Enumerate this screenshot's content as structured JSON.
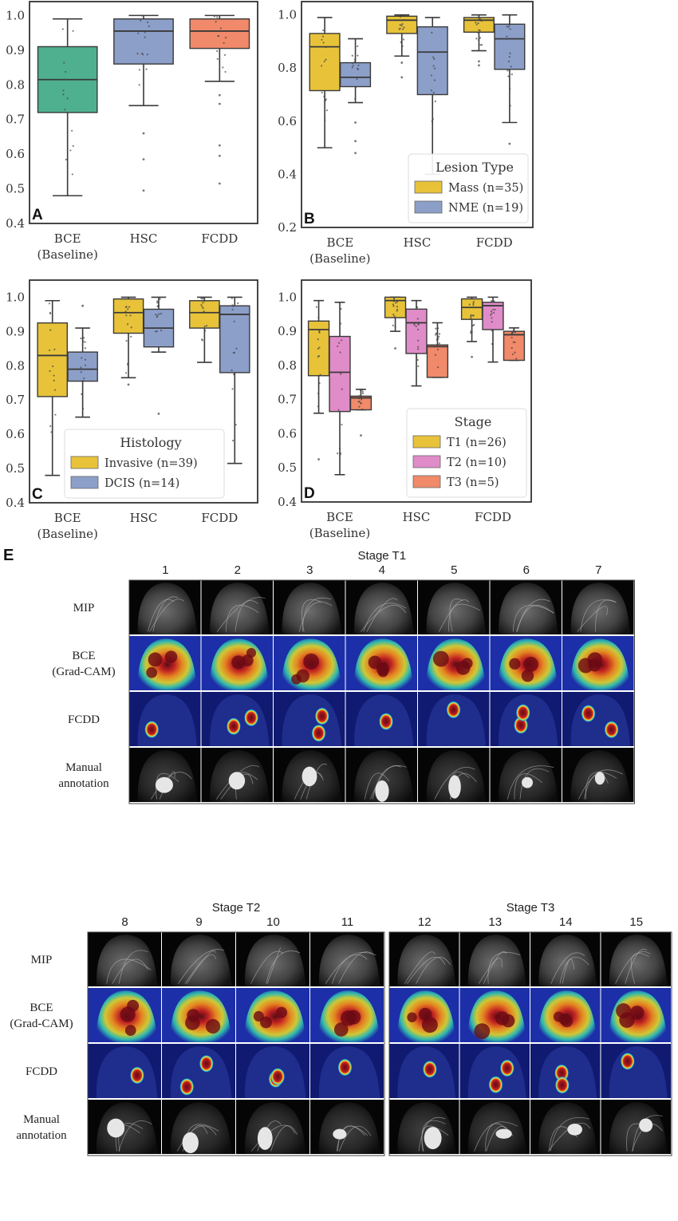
{
  "figure": {
    "panel_E_label": "E",
    "colors": {
      "overall_bce": "#4fb08f",
      "overall_hsc": "#8c9fc9",
      "overall_fcdd": "#f08a6a",
      "yellow": "#e8c33a",
      "blue": "#8c9fc9",
      "pink": "#e08cc8",
      "orange": "#f08a6a"
    }
  },
  "chart_data": [
    {
      "panel": "A",
      "type": "boxplot",
      "title": "",
      "xlabel": "",
      "ylabel": "",
      "categories": [
        "BCE\n(Baseline)",
        "HSC",
        "FCDD"
      ],
      "category_lines": [
        [
          "BCE",
          "(Baseline)"
        ],
        [
          "HSC"
        ],
        [
          "FCDD"
        ]
      ],
      "ylim": [
        0.4,
        1.04
      ],
      "yticks": [
        "0.4",
        "0.5",
        "0.6",
        "0.7",
        "0.8",
        "0.9",
        "1.0"
      ],
      "legend": null,
      "groups": [
        {
          "category": "BCE (Baseline)",
          "series": "All",
          "color": "#4fb08f",
          "whisker_low": 0.48,
          "q1": 0.72,
          "median": 0.815,
          "q3": 0.91,
          "whisker_high": 0.99,
          "outliers": []
        },
        {
          "category": "HSC",
          "series": "All",
          "color": "#8c9fc9",
          "whisker_low": 0.74,
          "q1": 0.86,
          "median": 0.955,
          "q3": 0.99,
          "whisker_high": 1.0,
          "outliers": [
            0.66,
            0.585,
            0.495
          ]
        },
        {
          "category": "FCDD",
          "series": "All",
          "color": "#f08a6a",
          "whisker_low": 0.81,
          "q1": 0.905,
          "median": 0.955,
          "q3": 0.99,
          "whisker_high": 1.0,
          "outliers": [
            0.77,
            0.745,
            0.625,
            0.595,
            0.515
          ]
        }
      ]
    },
    {
      "panel": "B",
      "type": "boxplot",
      "title": "",
      "xlabel": "",
      "ylabel": "",
      "categories": [
        "BCE\n(Baseline)",
        "HSC",
        "FCDD"
      ],
      "category_lines": [
        [
          "BCE",
          "(Baseline)"
        ],
        [
          "HSC"
        ],
        [
          "FCDD"
        ]
      ],
      "ylim": [
        0.2,
        1.05
      ],
      "yticks": [
        "0.2",
        "0.4",
        "0.6",
        "0.8",
        "1.0"
      ],
      "legend": {
        "title": "Lesion Type",
        "position": "lower-right",
        "entries": [
          {
            "label": "Mass (n=35)",
            "color": "#e8c33a"
          },
          {
            "label": "NME (n=19)",
            "color": "#8c9fc9"
          }
        ]
      },
      "groups": [
        {
          "category": "BCE (Baseline)",
          "series": "Mass (n=35)",
          "color": "#e8c33a",
          "whisker_low": 0.5,
          "q1": 0.715,
          "median": 0.88,
          "q3": 0.93,
          "whisker_high": 0.99,
          "outliers": []
        },
        {
          "category": "BCE (Baseline)",
          "series": "NME (n=19)",
          "color": "#8c9fc9",
          "whisker_low": 0.67,
          "q1": 0.73,
          "median": 0.765,
          "q3": 0.82,
          "whisker_high": 0.91,
          "outliers": [
            0.595,
            0.525,
            0.48
          ]
        },
        {
          "category": "HSC",
          "series": "Mass (n=35)",
          "color": "#e8c33a",
          "whisker_low": 0.845,
          "q1": 0.93,
          "median": 0.98,
          "q3": 0.995,
          "whisker_high": 1.0,
          "outliers": [
            0.82,
            0.765
          ]
        },
        {
          "category": "HSC",
          "series": "NME (n=19)",
          "color": "#8c9fc9",
          "whisker_low": 0.4,
          "q1": 0.7,
          "median": 0.86,
          "q3": 0.955,
          "whisker_high": 0.99,
          "outliers": []
        },
        {
          "category": "FCDD",
          "series": "Mass (n=35)",
          "color": "#e8c33a",
          "whisker_low": 0.865,
          "q1": 0.935,
          "median": 0.98,
          "q3": 0.99,
          "whisker_high": 1.0,
          "outliers": [
            0.825,
            0.81
          ]
        },
        {
          "category": "FCDD",
          "series": "NME (n=19)",
          "color": "#8c9fc9",
          "whisker_low": 0.595,
          "q1": 0.795,
          "median": 0.91,
          "q3": 0.965,
          "whisker_high": 1.0,
          "outliers": [
            0.515
          ]
        }
      ]
    },
    {
      "panel": "C",
      "type": "boxplot",
      "title": "",
      "xlabel": "",
      "ylabel": "",
      "categories": [
        "BCE\n(Baseline)",
        "HSC",
        "FCDD"
      ],
      "category_lines": [
        [
          "BCE",
          "(Baseline)"
        ],
        [
          "HSC"
        ],
        [
          "FCDD"
        ]
      ],
      "ylim": [
        0.4,
        1.05
      ],
      "yticks": [
        "0.4",
        "0.5",
        "0.6",
        "0.7",
        "0.8",
        "0.9",
        "1.0"
      ],
      "legend": {
        "title": "Histology",
        "position": "lower-center",
        "entries": [
          {
            "label": "Invasive (n=39)",
            "color": "#e8c33a"
          },
          {
            "label": "DCIS (n=14)",
            "color": "#8c9fc9"
          }
        ]
      },
      "groups": [
        {
          "category": "BCE (Baseline)",
          "series": "Invasive (n=39)",
          "color": "#e8c33a",
          "whisker_low": 0.48,
          "q1": 0.71,
          "median": 0.83,
          "q3": 0.925,
          "whisker_high": 0.99,
          "outliers": []
        },
        {
          "category": "BCE (Baseline)",
          "series": "DCIS (n=14)",
          "color": "#8c9fc9",
          "whisker_low": 0.65,
          "q1": 0.755,
          "median": 0.79,
          "q3": 0.84,
          "whisker_high": 0.91,
          "outliers": [
            0.975
          ]
        },
        {
          "category": "HSC",
          "series": "Invasive (n=39)",
          "color": "#e8c33a",
          "whisker_low": 0.765,
          "q1": 0.895,
          "median": 0.955,
          "q3": 0.995,
          "whisker_high": 1.0,
          "outliers": [
            0.745
          ]
        },
        {
          "category": "HSC",
          "series": "DCIS (n=14)",
          "color": "#8c9fc9",
          "whisker_low": 0.84,
          "q1": 0.855,
          "median": 0.91,
          "q3": 0.965,
          "whisker_high": 1.0,
          "outliers": [
            0.66
          ]
        },
        {
          "category": "FCDD",
          "series": "Invasive (n=39)",
          "color": "#e8c33a",
          "whisker_low": 0.81,
          "q1": 0.91,
          "median": 0.955,
          "q3": 0.99,
          "whisker_high": 1.0,
          "outliers": []
        },
        {
          "category": "FCDD",
          "series": "DCIS (n=14)",
          "color": "#8c9fc9",
          "whisker_low": 0.515,
          "q1": 0.78,
          "median": 0.95,
          "q3": 0.975,
          "whisker_high": 1.0,
          "outliers": []
        }
      ]
    },
    {
      "panel": "D",
      "type": "boxplot",
      "title": "",
      "xlabel": "",
      "ylabel": "",
      "categories": [
        "BCE\n(Baseline)",
        "HSC",
        "FCDD"
      ],
      "category_lines": [
        [
          "BCE",
          "(Baseline)"
        ],
        [
          "HSC"
        ],
        [
          "FCDD"
        ]
      ],
      "ylim": [
        0.4,
        1.05
      ],
      "yticks": [
        "0.4",
        "0.5",
        "0.6",
        "0.7",
        "0.8",
        "0.9",
        "1.0"
      ],
      "legend": {
        "title": "Stage",
        "position": "lower-right",
        "entries": [
          {
            "label": "T1 (n=26)",
            "color": "#e8c33a"
          },
          {
            "label": "T2 (n=10)",
            "color": "#e08cc8"
          },
          {
            "label": "T3 (n=5)",
            "color": "#f08a6a"
          }
        ]
      },
      "groups": [
        {
          "category": "BCE (Baseline)",
          "series": "T1 (n=26)",
          "color": "#e8c33a",
          "whisker_low": 0.66,
          "q1": 0.77,
          "median": 0.905,
          "q3": 0.93,
          "whisker_high": 0.99,
          "outliers": [
            0.525
          ]
        },
        {
          "category": "BCE (Baseline)",
          "series": "T2 (n=10)",
          "color": "#e08cc8",
          "whisker_low": 0.48,
          "q1": 0.665,
          "median": 0.78,
          "q3": 0.885,
          "whisker_high": 0.985,
          "outliers": []
        },
        {
          "category": "BCE (Baseline)",
          "series": "T3 (n=5)",
          "color": "#f08a6a",
          "whisker_low": 0.67,
          "q1": 0.67,
          "median": 0.705,
          "q3": 0.71,
          "whisker_high": 0.73,
          "outliers": [
            0.595
          ]
        },
        {
          "category": "HSC",
          "series": "T1 (n=26)",
          "color": "#e8c33a",
          "whisker_low": 0.9,
          "q1": 0.94,
          "median": 0.99,
          "q3": 1.0,
          "whisker_high": 1.0,
          "outliers": [
            0.85
          ]
        },
        {
          "category": "HSC",
          "series": "T2 (n=10)",
          "color": "#e08cc8",
          "whisker_low": 0.74,
          "q1": 0.835,
          "median": 0.925,
          "q3": 0.965,
          "whisker_high": 0.99,
          "outliers": []
        },
        {
          "category": "HSC",
          "series": "T3 (n=5)",
          "color": "#f08a6a",
          "whisker_low": 0.765,
          "q1": 0.765,
          "median": 0.855,
          "q3": 0.86,
          "whisker_high": 0.925,
          "outliers": []
        },
        {
          "category": "FCDD",
          "series": "T1 (n=26)",
          "color": "#e8c33a",
          "whisker_low": 0.87,
          "q1": 0.935,
          "median": 0.97,
          "q3": 0.995,
          "whisker_high": 1.0,
          "outliers": [
            0.825
          ]
        },
        {
          "category": "FCDD",
          "series": "T2 (n=10)",
          "color": "#e08cc8",
          "whisker_low": 0.81,
          "q1": 0.905,
          "median": 0.975,
          "q3": 0.985,
          "whisker_high": 1.0,
          "outliers": []
        },
        {
          "category": "FCDD",
          "series": "T3 (n=5)",
          "color": "#f08a6a",
          "whisker_low": 0.815,
          "q1": 0.815,
          "median": 0.89,
          "q3": 0.9,
          "whisker_high": 0.91,
          "outliers": []
        }
      ]
    }
  ],
  "image_grid": {
    "label": "E",
    "row_labels": [
      [
        "MIP"
      ],
      [
        "BCE",
        "(Grad-CAM)"
      ],
      [
        "FCDD"
      ],
      [
        "Manual",
        "annotation"
      ]
    ],
    "row_types": [
      "mip",
      "gradcam",
      "fcdd",
      "annotation"
    ],
    "blocks": [
      {
        "title": "Stage T1",
        "cases": [
          "1",
          "2",
          "3",
          "4",
          "5",
          "6",
          "7"
        ]
      },
      {
        "title": "Stage T2",
        "cases": [
          "8",
          "9",
          "10",
          "11"
        ]
      },
      {
        "title": "Stage T3",
        "cases": [
          "12",
          "13",
          "14",
          "15"
        ]
      }
    ]
  }
}
